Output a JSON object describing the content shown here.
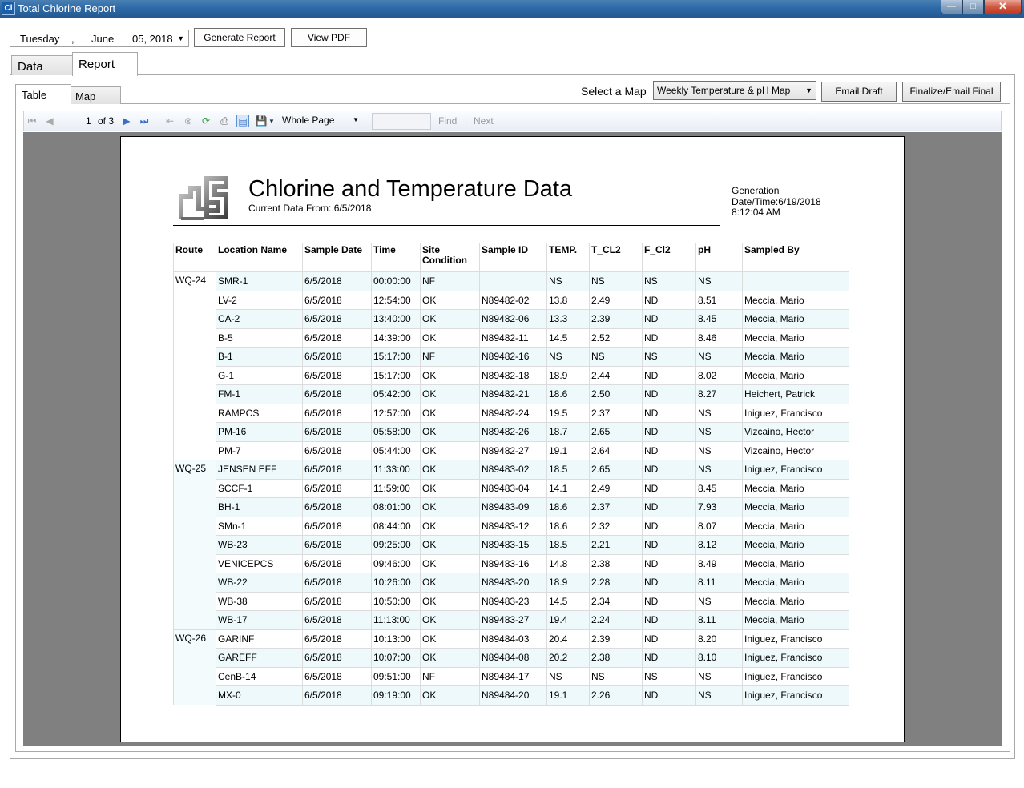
{
  "window": {
    "title": "Total Chlorine Report",
    "icon_text": "Cl"
  },
  "date_picker": {
    "weekday": "Tuesday",
    "sep": ",",
    "month": "June",
    "daydate": "05, 2018"
  },
  "buttons": {
    "generate": "Generate Report",
    "view_pdf": "View PDF",
    "email_draft": "Email Draft",
    "finalize": "Finalize/Email Final"
  },
  "tabs": {
    "data": "Data",
    "report": "Report",
    "table": "Table",
    "map": "Map"
  },
  "map_select": {
    "label": "Select a Map",
    "value": "Weekly Temperature & pH Map"
  },
  "viewer": {
    "page": "1",
    "of": "of 3",
    "zoom": "Whole Page",
    "find": "Find",
    "next": "Next",
    "sep": "|"
  },
  "report": {
    "title": "Chlorine and Temperature Data",
    "subtitle": "Current Data From: 6/5/2018",
    "generation_1": "Generation",
    "generation_2": "Date/Time:6/19/2018",
    "generation_3": "8:12:04 AM"
  },
  "table": {
    "columns": [
      "Route",
      "Location Name",
      "Sample Date",
      "Time",
      "Site Condition",
      "Sample ID",
      "TEMP.",
      "T_CL2",
      "F_Cl2",
      "pH",
      "Sampled By"
    ],
    "rows": [
      [
        "WQ-24",
        "SMR-1",
        "6/5/2018",
        "00:00:00",
        "NF",
        "",
        "NS",
        "NS",
        "NS",
        "NS",
        ""
      ],
      [
        "",
        "LV-2",
        "6/5/2018",
        "12:54:00",
        "OK",
        "N89482-02",
        "13.8",
        "2.49",
        "ND",
        "8.51",
        "Meccia, Mario"
      ],
      [
        "",
        "CA-2",
        "6/5/2018",
        "13:40:00",
        "OK",
        "N89482-06",
        "13.3",
        "2.39",
        "ND",
        "8.45",
        "Meccia, Mario"
      ],
      [
        "",
        "B-5",
        "6/5/2018",
        "14:39:00",
        "OK",
        "N89482-11",
        "14.5",
        "2.52",
        "ND",
        "8.46",
        "Meccia, Mario"
      ],
      [
        "",
        "B-1",
        "6/5/2018",
        "15:17:00",
        "NF",
        "N89482-16",
        "NS",
        "NS",
        "NS",
        "NS",
        "Meccia, Mario"
      ],
      [
        "",
        "G-1",
        "6/5/2018",
        "15:17:00",
        "OK",
        "N89482-18",
        "18.9",
        "2.44",
        "ND",
        "8.02",
        "Meccia, Mario"
      ],
      [
        "",
        "FM-1",
        "6/5/2018",
        "05:42:00",
        "OK",
        "N89482-21",
        "18.6",
        "2.50",
        "ND",
        "8.27",
        "Heichert, Patrick"
      ],
      [
        "",
        "RAMPCS",
        "6/5/2018",
        "12:57:00",
        "OK",
        "N89482-24",
        "19.5",
        "2.37",
        "ND",
        "NS",
        "Iniguez, Francisco"
      ],
      [
        "",
        "PM-16",
        "6/5/2018",
        "05:58:00",
        "OK",
        "N89482-26",
        "18.7",
        "2.65",
        "ND",
        "NS",
        "Vizcaino, Hector"
      ],
      [
        "",
        "PM-7",
        "6/5/2018",
        "05:44:00",
        "OK",
        "N89482-27",
        "19.1",
        "2.64",
        "ND",
        "NS",
        "Vizcaino, Hector"
      ],
      [
        "WQ-25",
        "JENSEN EFF",
        "6/5/2018",
        "11:33:00",
        "OK",
        "N89483-02",
        "18.5",
        "2.65",
        "ND",
        "NS",
        "Iniguez, Francisco"
      ],
      [
        "",
        "SCCF-1",
        "6/5/2018",
        "11:59:00",
        "OK",
        "N89483-04",
        "14.1",
        "2.49",
        "ND",
        "8.45",
        "Meccia, Mario"
      ],
      [
        "",
        "BH-1",
        "6/5/2018",
        "08:01:00",
        "OK",
        "N89483-09",
        "18.6",
        "2.37",
        "ND",
        "7.93",
        "Meccia, Mario"
      ],
      [
        "",
        "SMn-1",
        "6/5/2018",
        "08:44:00",
        "OK",
        "N89483-12",
        "18.6",
        "2.32",
        "ND",
        "8.07",
        "Meccia, Mario"
      ],
      [
        "",
        "WB-23",
        "6/5/2018",
        "09:25:00",
        "OK",
        "N89483-15",
        "18.5",
        "2.21",
        "ND",
        "8.12",
        "Meccia, Mario"
      ],
      [
        "",
        "VENICEPCS",
        "6/5/2018",
        "09:46:00",
        "OK",
        "N89483-16",
        "14.8",
        "2.38",
        "ND",
        "8.49",
        "Meccia, Mario"
      ],
      [
        "",
        "WB-22",
        "6/5/2018",
        "10:26:00",
        "OK",
        "N89483-20",
        "18.9",
        "2.28",
        "ND",
        "8.11",
        "Meccia, Mario"
      ],
      [
        "",
        "WB-38",
        "6/5/2018",
        "10:50:00",
        "OK",
        "N89483-23",
        "14.5",
        "2.34",
        "ND",
        "NS",
        "Meccia, Mario"
      ],
      [
        "",
        "WB-17",
        "6/5/2018",
        "11:13:00",
        "OK",
        "N89483-27",
        "19.4",
        "2.24",
        "ND",
        "8.11",
        "Meccia, Mario"
      ],
      [
        "WQ-26",
        "GARINF",
        "6/5/2018",
        "10:13:00",
        "OK",
        "N89484-03",
        "20.4",
        "2.39",
        "ND",
        "8.20",
        "Iniguez, Francisco"
      ],
      [
        "",
        "GAREFF",
        "6/5/2018",
        "10:07:00",
        "OK",
        "N89484-08",
        "20.2",
        "2.38",
        "ND",
        "8.10",
        "Iniguez, Francisco"
      ],
      [
        "",
        "CenB-14",
        "6/5/2018",
        "09:51:00",
        "NF",
        "N89484-17",
        "NS",
        "NS",
        "NS",
        "NS",
        "Iniguez, Francisco"
      ],
      [
        "",
        "MX-0",
        "6/5/2018",
        "09:19:00",
        "OK",
        "N89484-20",
        "19.1",
        "2.26",
        "ND",
        "NS",
        "Iniguez, Francisco"
      ]
    ]
  }
}
